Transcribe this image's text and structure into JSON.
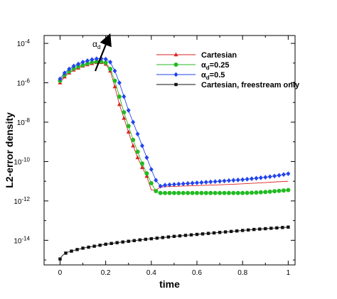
{
  "chart_data": {
    "type": "line",
    "xlabel": "time",
    "ylabel": "L2-error density",
    "xlim": [
      -0.07,
      1.03
    ],
    "ylim_log10": [
      -15.25,
      -3.6
    ],
    "y_scale": "log",
    "x_ticks": [
      0,
      0.2,
      0.4,
      0.6,
      0.8,
      1
    ],
    "x_tick_labels": [
      "0",
      "0.2",
      "0.4",
      "0.6",
      "0.8",
      "1"
    ],
    "y_ticks_log10": [
      -4,
      -6,
      -8,
      -10,
      -12,
      -14
    ],
    "y_tick_labels": [
      {
        "base": "10",
        "exp": "-4"
      },
      {
        "base": "10",
        "exp": "-6"
      },
      {
        "base": "10",
        "exp": "-8"
      },
      {
        "base": "10",
        "exp": "-10"
      },
      {
        "base": "10",
        "exp": "-12"
      },
      {
        "base": "10",
        "exp": "-14"
      }
    ],
    "annotation": {
      "text": "α",
      "sub": "d"
    },
    "legend_placement": "top-right",
    "series": [
      {
        "name": "Cartesian",
        "label_base": "Cartesian",
        "label_sub": "",
        "label_suffix": "",
        "color": "#dd2222",
        "marker": "triangle",
        "x": [
          0.0,
          0.02,
          0.04,
          0.06,
          0.08,
          0.1,
          0.12,
          0.14,
          0.16,
          0.18,
          0.2,
          0.22,
          0.24,
          0.26,
          0.28,
          0.3,
          0.32,
          0.34,
          0.36,
          0.38,
          0.4,
          0.42,
          0.44,
          0.46,
          0.48,
          0.5,
          0.55,
          0.6,
          0.65,
          0.7,
          0.75,
          0.8,
          0.85,
          0.9,
          0.95,
          1.0
        ],
        "y_log10": [
          -6.0,
          -5.7,
          -5.5,
          -5.35,
          -5.25,
          -5.15,
          -5.08,
          -5.02,
          -4.97,
          -4.97,
          -5.05,
          -5.4,
          -6.2,
          -7.1,
          -7.8,
          -8.5,
          -9.2,
          -9.8,
          -10.3,
          -10.75,
          -11.45,
          -11.45,
          -11.3,
          -11.28,
          -11.27,
          -11.26,
          -11.24,
          -11.22,
          -11.2,
          -11.18,
          -11.16,
          -11.13,
          -11.1,
          -11.07,
          -11.03,
          -11.0
        ],
        "marker_x": [
          0.0,
          0.02,
          0.04,
          0.06,
          0.08,
          0.1,
          0.12,
          0.14,
          0.16,
          0.18,
          0.2,
          0.22,
          0.24,
          0.26,
          0.28,
          0.3,
          0.32,
          0.34,
          0.36,
          0.38
        ]
      },
      {
        "name": "αd=0.25",
        "label_base": "α",
        "label_sub": "d",
        "label_suffix": "=0.25",
        "color": "#22bb22",
        "marker": "circle",
        "x": [
          0.0,
          0.02,
          0.04,
          0.06,
          0.08,
          0.1,
          0.12,
          0.14,
          0.16,
          0.18,
          0.2,
          0.22,
          0.24,
          0.26,
          0.28,
          0.3,
          0.32,
          0.34,
          0.36,
          0.38,
          0.4,
          0.42,
          0.44,
          0.46,
          0.48,
          0.5,
          0.55,
          0.6,
          0.65,
          0.7,
          0.75,
          0.8,
          0.85,
          0.9,
          0.95,
          1.0
        ],
        "y_log10": [
          -5.9,
          -5.6,
          -5.42,
          -5.28,
          -5.18,
          -5.1,
          -5.02,
          -4.96,
          -4.92,
          -4.92,
          -4.98,
          -5.3,
          -5.9,
          -6.7,
          -7.5,
          -8.2,
          -8.9,
          -9.5,
          -10.1,
          -10.6,
          -11.1,
          -11.5,
          -11.6,
          -11.6,
          -11.6,
          -11.6,
          -11.6,
          -11.6,
          -11.6,
          -11.6,
          -11.6,
          -11.6,
          -11.58,
          -11.55,
          -11.5,
          -11.45
        ],
        "marker_x": [
          0.0,
          0.02,
          0.04,
          0.06,
          0.08,
          0.1,
          0.12,
          0.14,
          0.16,
          0.18,
          0.2,
          0.22,
          0.24,
          0.26,
          0.28,
          0.3,
          0.32,
          0.34,
          0.36,
          0.38,
          0.4,
          0.42,
          0.44,
          0.46,
          0.48,
          0.5,
          0.52,
          0.54,
          0.56,
          0.58,
          0.6,
          0.62,
          0.64,
          0.66,
          0.68,
          0.7,
          0.72,
          0.74,
          0.76,
          0.78,
          0.8,
          0.82,
          0.84,
          0.86,
          0.88,
          0.9,
          0.92,
          0.94,
          0.96,
          0.98,
          1.0
        ]
      },
      {
        "name": "αd=0.5",
        "label_base": "α",
        "label_sub": "d",
        "label_suffix": "=0.5",
        "color": "#2244ee",
        "marker": "diamond",
        "x": [
          0.0,
          0.02,
          0.04,
          0.06,
          0.08,
          0.1,
          0.12,
          0.14,
          0.16,
          0.18,
          0.2,
          0.22,
          0.24,
          0.26,
          0.28,
          0.3,
          0.32,
          0.34,
          0.36,
          0.38,
          0.4,
          0.42,
          0.44,
          0.46,
          0.48,
          0.5,
          0.55,
          0.6,
          0.65,
          0.7,
          0.75,
          0.8,
          0.85,
          0.9,
          0.95,
          1.0
        ],
        "y_log10": [
          -5.8,
          -5.5,
          -5.3,
          -5.15,
          -5.05,
          -4.95,
          -4.88,
          -4.82,
          -4.78,
          -4.77,
          -4.8,
          -4.95,
          -5.4,
          -6.0,
          -6.7,
          -7.4,
          -8.0,
          -8.6,
          -9.2,
          -9.8,
          -10.4,
          -10.95,
          -11.25,
          -11.2,
          -11.18,
          -11.16,
          -11.12,
          -11.08,
          -11.04,
          -11.0,
          -10.96,
          -10.92,
          -10.86,
          -10.8,
          -10.72,
          -10.62
        ],
        "marker_x": [
          0.0,
          0.02,
          0.04,
          0.06,
          0.08,
          0.1,
          0.12,
          0.14,
          0.16,
          0.18,
          0.2,
          0.22,
          0.24,
          0.26,
          0.28,
          0.3,
          0.32,
          0.34,
          0.36,
          0.38,
          0.4,
          0.42,
          0.44,
          0.46,
          0.48,
          0.5,
          0.52,
          0.54,
          0.56,
          0.58,
          0.6,
          0.62,
          0.64,
          0.66,
          0.68,
          0.7,
          0.72,
          0.74,
          0.76,
          0.78,
          0.8,
          0.82,
          0.84,
          0.86,
          0.88,
          0.9,
          0.92,
          0.94,
          0.96,
          0.98,
          1.0
        ]
      },
      {
        "name": "Cartesian, freestream only",
        "label_base": "Cartesian, freestream only",
        "label_sub": "",
        "label_suffix": "",
        "color": "#111111",
        "marker": "square",
        "x": [
          0.0,
          0.005,
          0.01,
          0.02,
          0.03,
          0.05,
          0.075,
          0.1,
          0.15,
          0.2,
          0.25,
          0.3,
          0.35,
          0.4,
          0.45,
          0.5,
          0.55,
          0.6,
          0.65,
          0.7,
          0.75,
          0.8,
          0.85,
          0.9,
          0.95,
          1.0
        ],
        "y_log10": [
          -14.95,
          -14.85,
          -14.78,
          -14.68,
          -14.62,
          -14.55,
          -14.47,
          -14.4,
          -14.3,
          -14.2,
          -14.12,
          -14.05,
          -13.98,
          -13.92,
          -13.86,
          -13.8,
          -13.75,
          -13.7,
          -13.65,
          -13.6,
          -13.55,
          -13.5,
          -13.45,
          -13.41,
          -13.37,
          -13.33
        ],
        "marker_x": [
          0.0,
          0.025,
          0.05,
          0.075,
          0.1,
          0.125,
          0.15,
          0.175,
          0.2,
          0.225,
          0.25,
          0.275,
          0.3,
          0.325,
          0.35,
          0.375,
          0.4,
          0.425,
          0.45,
          0.475,
          0.5,
          0.525,
          0.55,
          0.575,
          0.6,
          0.625,
          0.65,
          0.675,
          0.7,
          0.725,
          0.75,
          0.775,
          0.8,
          0.825,
          0.85,
          0.875,
          0.9,
          0.925,
          0.95,
          0.975,
          1.0
        ]
      }
    ]
  }
}
